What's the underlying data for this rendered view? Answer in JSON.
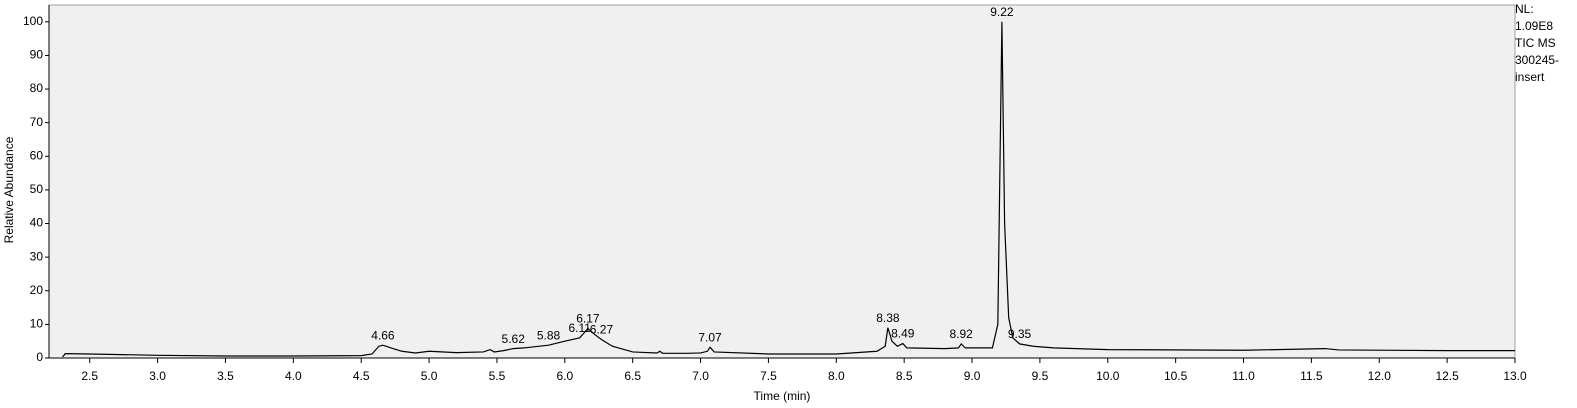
{
  "chart_data": {
    "type": "line",
    "x_label": "Time (min)",
    "y_label": "Relative Abundance",
    "info": [
      "NL:",
      "1.09E8",
      "TIC  MS",
      "300245-",
      "insert"
    ],
    "xlim": [
      2.2,
      13.0
    ],
    "ylim": [
      0,
      105
    ],
    "xticks": [
      2.5,
      {
        "value": 3,
        "label": "3.0"
      },
      3.5,
      {
        "value": 4,
        "label": "4.0"
      },
      4.5,
      {
        "value": 5,
        "label": "5.0"
      },
      5.5,
      {
        "value": 6,
        "label": "6.0"
      },
      6.5,
      {
        "value": 7,
        "label": "7.0"
      },
      7.5,
      {
        "value": 8,
        "label": "8.0"
      },
      8.5,
      {
        "value": 9,
        "label": "9.0"
      },
      9.5,
      {
        "value": 10,
        "label": "10.0"
      },
      10.5,
      {
        "value": 11,
        "label": "11.0"
      },
      11.5,
      {
        "value": 12,
        "label": "12.0"
      },
      12.5,
      {
        "value": 13,
        "label": "13.0"
      }
    ],
    "yticks": [
      0,
      10,
      20,
      30,
      40,
      50,
      60,
      70,
      80,
      90,
      100
    ],
    "color": "#000000",
    "x": [
      2.3,
      2.32,
      2.5,
      3.0,
      3.5,
      4.0,
      4.5,
      4.58,
      4.63,
      4.66,
      4.72,
      4.8,
      4.9,
      5.0,
      5.2,
      5.4,
      5.45,
      5.48,
      5.55,
      5.62,
      5.7,
      5.88,
      6.0,
      6.11,
      6.17,
      6.22,
      6.27,
      6.35,
      6.5,
      6.68,
      6.7,
      6.72,
      6.9,
      7.0,
      7.05,
      7.07,
      7.1,
      7.5,
      8.0,
      8.3,
      8.36,
      8.38,
      8.41,
      8.45,
      8.49,
      8.52,
      8.8,
      8.9,
      8.92,
      8.95,
      9.15,
      9.19,
      9.22,
      9.24,
      9.27,
      9.3,
      9.35,
      9.45,
      9.6,
      10.0,
      11.0,
      11.6,
      11.7,
      12.5,
      13.0
    ],
    "values": [
      0.3,
      1.3,
      1.2,
      0.8,
      0.6,
      0.6,
      0.7,
      1.2,
      3.5,
      3.8,
      3.0,
      2.0,
      1.5,
      2.0,
      1.6,
      1.8,
      2.5,
      1.8,
      2.2,
      2.8,
      3.0,
      3.8,
      5.0,
      6.0,
      8.8,
      7.0,
      5.5,
      3.5,
      1.8,
      1.5,
      2.0,
      1.4,
      1.4,
      1.5,
      2.0,
      3.2,
      1.8,
      1.2,
      1.2,
      2.0,
      3.5,
      9.0,
      5.0,
      3.5,
      4.3,
      3.0,
      2.8,
      3.0,
      4.2,
      3.0,
      3.0,
      10,
      100,
      40,
      12,
      6,
      4.2,
      3.5,
      3.0,
      2.5,
      2.3,
      2.8,
      2.4,
      2.2,
      2.2
    ],
    "peaks": [
      4.66,
      5.62,
      5.88,
      6.11,
      6.17,
      6.27,
      7.07,
      8.38,
      8.49,
      8.92,
      9.22,
      9.35
    ]
  }
}
